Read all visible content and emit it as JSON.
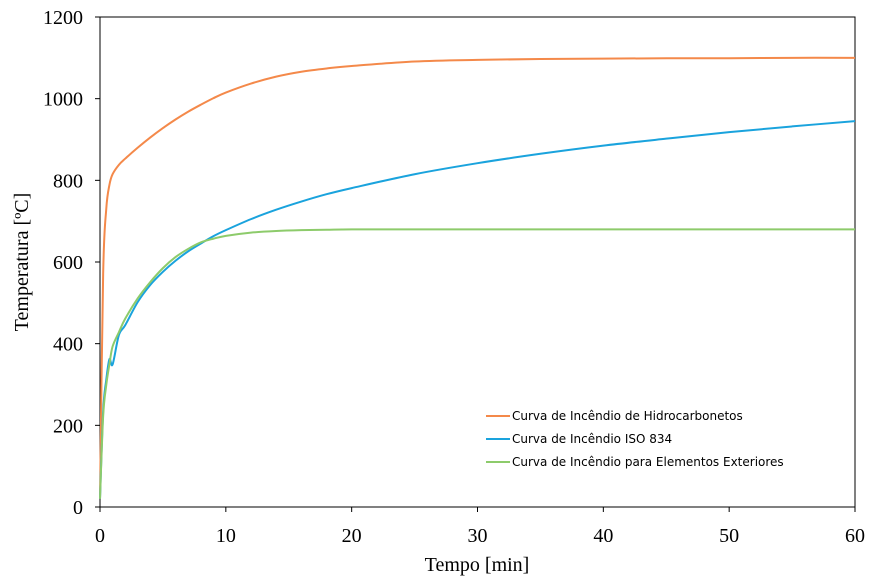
{
  "chart_data": {
    "type": "line",
    "title": "",
    "xlabel": "Tempo [min]",
    "ylabel": "Temperatura [ºC]",
    "xlim": [
      0,
      60
    ],
    "ylim": [
      0,
      1200
    ],
    "x_ticks": [
      "0",
      "10",
      "20",
      "30",
      "40",
      "50",
      "60"
    ],
    "y_ticks": [
      "0",
      "200",
      "400",
      "600",
      "800",
      "1000",
      "1200"
    ],
    "grid": false,
    "legend_position": "bottom-right",
    "x": [
      0,
      0.25,
      0.5,
      0.75,
      1,
      1.5,
      2,
      3,
      4,
      5,
      6,
      7,
      8,
      9,
      10,
      12,
      14,
      16,
      18,
      20,
      25,
      30,
      35,
      40,
      45,
      50,
      55,
      60
    ],
    "series": [
      {
        "name": "Curva de Incêndio de Hidrocarbonetos",
        "color": "#F4894A",
        "values": [
          20,
          571,
          731,
          789,
          815,
          838,
          853,
          880,
          905,
          928,
          949,
          968,
          985,
          1001,
          1015,
          1037,
          1054,
          1066,
          1074,
          1080,
          1091,
          1095,
          1097,
          1098,
          1099,
          1099,
          1100,
          1100
        ]
      },
      {
        "name": "Curva de Incêndio ISO 834",
        "color": "#1AA3DD",
        "values": [
          20,
          235,
          312,
          362,
          349,
          421,
          445,
          502,
          544,
          576,
          603,
          626,
          645,
          663,
          678,
          705,
          728,
          748,
          766,
          781,
          815,
          842,
          865,
          885,
          902,
          918,
          932,
          945
        ]
      },
      {
        "name": "Curva de Incêndio para Elementos Exteriores",
        "color": "#8DCB6B",
        "values": [
          20,
          222,
          299,
          350,
          393,
          428,
          461,
          511,
          551,
          585,
          612,
          632,
          648,
          657,
          664,
          672,
          676,
          678,
          679,
          680,
          680,
          680,
          680,
          680,
          680,
          680,
          680,
          680
        ]
      }
    ]
  }
}
